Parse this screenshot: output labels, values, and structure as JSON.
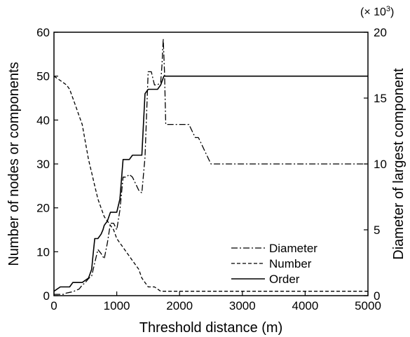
{
  "chart_data": {
    "type": "line",
    "xlabel": "Threshold distance (m)",
    "ylabel_left": "Number of nodes or components",
    "ylabel_right": "Diameter of largest component",
    "right_multiplier": "(× 10",
    "right_multiplier_exp": "3",
    "right_multiplier_close": ")",
    "xlim": [
      0,
      5000
    ],
    "ylim_left": [
      0,
      60
    ],
    "ylim_right": [
      0,
      20
    ],
    "xticks": [
      0,
      1000,
      2000,
      3000,
      4000,
      5000
    ],
    "yticks_left": [
      0,
      10,
      20,
      30,
      40,
      50,
      60
    ],
    "yticks_right": [
      0,
      5,
      10,
      15,
      20
    ],
    "grid": false,
    "legend_position": "bottom-right",
    "series": [
      {
        "name": "Diameter",
        "axis": "right",
        "style": "dashdot",
        "x": [
          0,
          150,
          200,
          300,
          400,
          450,
          500,
          550,
          600,
          650,
          700,
          750,
          800,
          850,
          900,
          950,
          1000,
          1050,
          1100,
          1150,
          1200,
          1250,
          1300,
          1350,
          1400,
          1450,
          1500,
          1550,
          1600,
          1650,
          1700,
          1720,
          1740,
          1760,
          1780,
          1800,
          2000,
          2150,
          2200,
          2250,
          2300,
          2350,
          2400,
          2450,
          2500,
          3000,
          4000,
          5000
        ],
        "values": [
          0.1,
          0.1,
          0.2,
          0.3,
          0.5,
          0.8,
          1.0,
          1.3,
          1.5,
          2.5,
          3.5,
          3.2,
          2.8,
          4.0,
          5.5,
          5.5,
          5.0,
          6.5,
          9.0,
          9.0,
          9.2,
          9.0,
          8.5,
          8.0,
          7.8,
          10.5,
          17.0,
          17.0,
          16.0,
          16.0,
          16.2,
          17.5,
          19.5,
          17.0,
          13.0,
          13.0,
          13.0,
          13.0,
          12.5,
          12.0,
          12.0,
          11.5,
          11.0,
          10.5,
          10.0,
          10.0,
          10.0,
          10.0
        ]
      },
      {
        "name": "Number",
        "axis": "left",
        "style": "dashed",
        "x": [
          0,
          100,
          200,
          250,
          300,
          350,
          400,
          450,
          500,
          550,
          600,
          650,
          700,
          750,
          800,
          850,
          900,
          950,
          1000,
          1050,
          1100,
          1150,
          1200,
          1250,
          1300,
          1350,
          1400,
          1450,
          1500,
          1550,
          1600,
          1700,
          1800,
          1900,
          2000,
          3000,
          4000,
          5000
        ],
        "values": [
          50,
          49,
          48,
          47,
          45,
          43,
          41,
          39,
          35,
          31,
          28,
          25,
          22,
          20,
          18,
          17,
          16,
          15,
          13,
          12,
          11,
          10,
          9,
          8,
          7,
          6,
          4,
          3,
          2,
          2,
          2,
          1,
          1,
          1,
          1,
          1,
          1,
          1
        ]
      },
      {
        "name": "Order",
        "axis": "left",
        "style": "solid",
        "x": [
          0,
          100,
          250,
          300,
          450,
          550,
          600,
          620,
          650,
          700,
          750,
          780,
          800,
          850,
          900,
          950,
          1000,
          1050,
          1100,
          1150,
          1200,
          1250,
          1300,
          1350,
          1400,
          1450,
          1500,
          1550,
          1600,
          1650,
          1700,
          1750,
          1800,
          2000,
          3000,
          4000,
          5000
        ],
        "values": [
          1,
          2,
          2,
          3,
          3,
          4,
          6,
          9,
          13,
          13,
          14,
          15,
          16,
          17,
          19,
          19,
          19,
          22,
          31,
          31,
          31,
          32,
          32,
          32,
          32,
          46,
          47,
          47,
          47,
          47,
          48,
          50,
          50,
          50,
          50,
          50,
          50
        ]
      }
    ]
  }
}
